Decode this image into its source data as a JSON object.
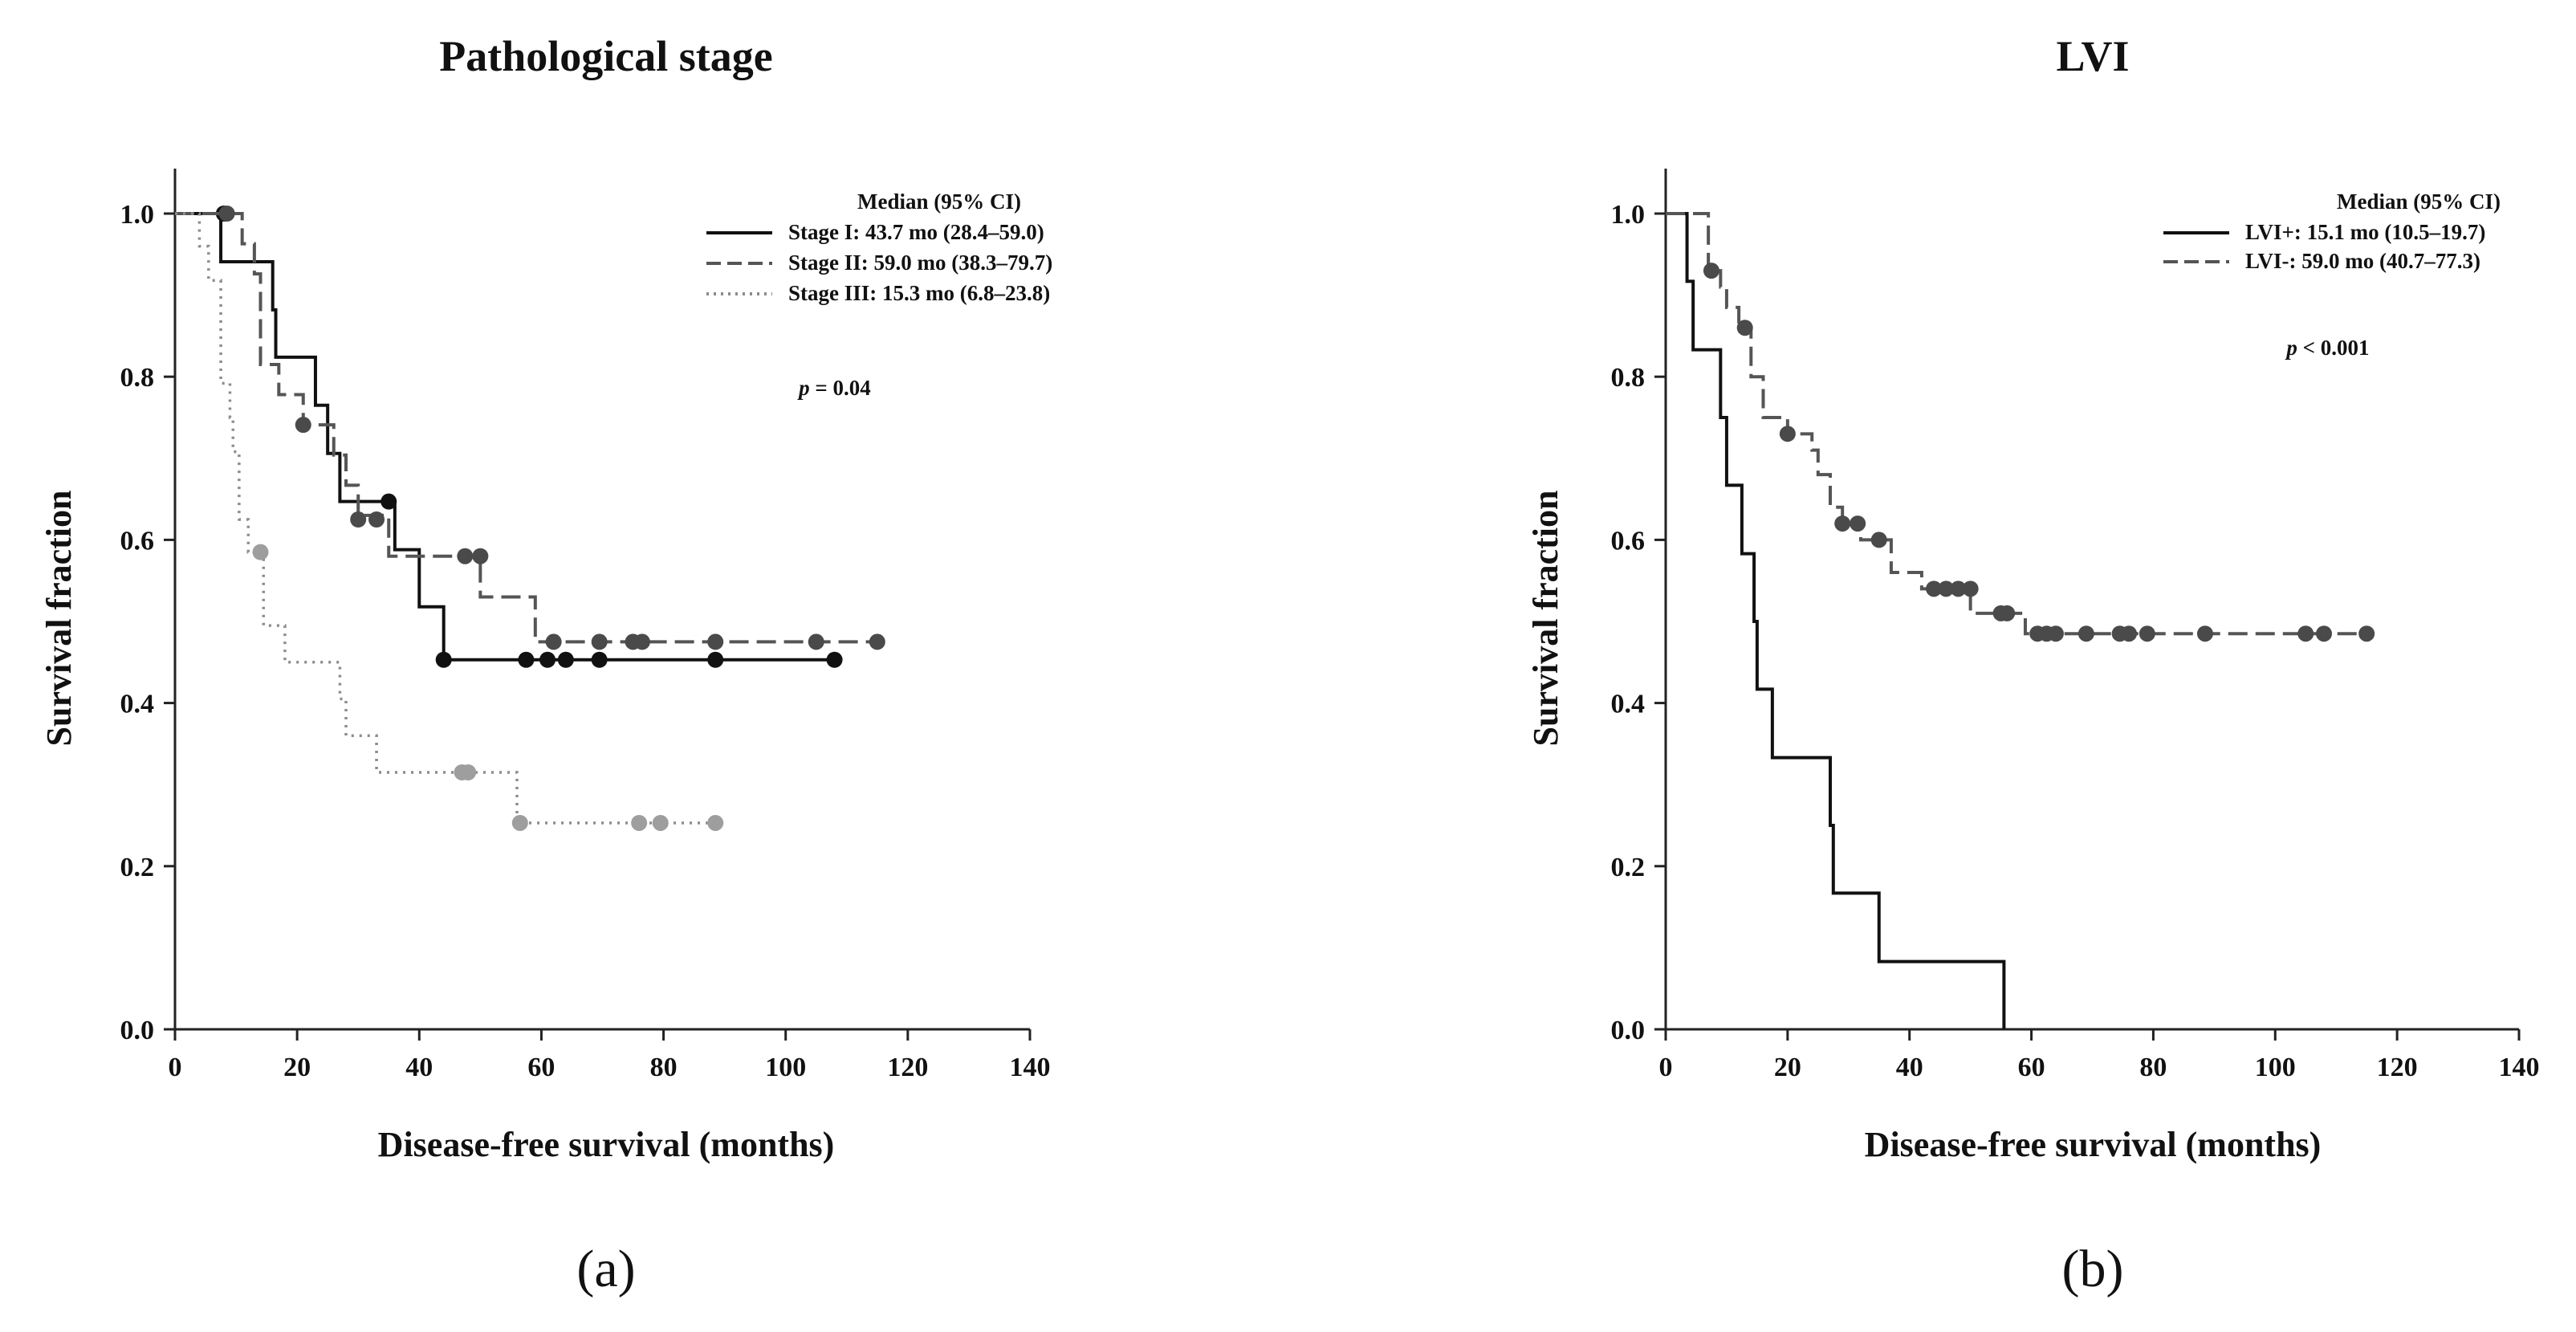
{
  "chart_data": [
    {
      "type": "line",
      "panel_label": "(a)",
      "title": "Pathological stage",
      "xlabel": "Disease-free survival (months)",
      "ylabel": "Survival fraction",
      "xlim": [
        0,
        140
      ],
      "ylim": [
        0,
        1.0
      ],
      "xticks": [
        "0",
        "20",
        "40",
        "60",
        "80",
        "100",
        "120",
        "140"
      ],
      "yticks": [
        "0.0",
        "0.2",
        "0.4",
        "0.6",
        "0.8",
        "1.0"
      ],
      "legend_title": "Median (95% CI)",
      "p_value": {
        "prefix": "p",
        "text": " = 0.04"
      },
      "series": [
        {
          "name": "Stage I: 43.7 mo (28.4–59.0)",
          "style": "solid",
          "color": "#111111",
          "marker_color": "#111111",
          "steps": [
            [
              0,
              1.0
            ],
            [
              7.5,
              0.941
            ],
            [
              16,
              0.882
            ],
            [
              16.5,
              0.824
            ],
            [
              23,
              0.765
            ],
            [
              25,
              0.706
            ],
            [
              27,
              0.647
            ],
            [
              36,
              0.588
            ],
            [
              40,
              0.518
            ],
            [
              44,
              0.453
            ],
            [
              108,
              0.453
            ]
          ],
          "censored": [
            [
              8,
              1.0
            ],
            [
              35,
              0.647
            ],
            [
              44,
              0.453
            ],
            [
              57.5,
              0.453
            ],
            [
              61,
              0.453
            ],
            [
              64,
              0.453
            ],
            [
              69.5,
              0.453
            ],
            [
              88.5,
              0.453
            ],
            [
              108,
              0.453
            ]
          ]
        },
        {
          "name": "Stage II: 59.0 mo (38.3–79.7)",
          "style": "dashed",
          "color": "#555555",
          "marker_color": "#4a4a4a",
          "steps": [
            [
              0,
              1.0
            ],
            [
              11,
              0.963
            ],
            [
              13,
              0.926
            ],
            [
              14,
              0.815
            ],
            [
              17,
              0.778
            ],
            [
              21,
              0.741
            ],
            [
              26,
              0.704
            ],
            [
              28,
              0.667
            ],
            [
              30,
              0.63
            ],
            [
              35,
              0.58
            ],
            [
              50,
              0.53
            ],
            [
              59,
              0.475
            ],
            [
              115,
              0.475
            ]
          ],
          "censored": [
            [
              8.5,
              1.0
            ],
            [
              21,
              0.741
            ],
            [
              30,
              0.625
            ],
            [
              33,
              0.625
            ],
            [
              47.5,
              0.58
            ],
            [
              50,
              0.58
            ],
            [
              62,
              0.475
            ],
            [
              69.5,
              0.475
            ],
            [
              75,
              0.475
            ],
            [
              76.5,
              0.475
            ],
            [
              88.5,
              0.475
            ],
            [
              105,
              0.475
            ],
            [
              115,
              0.475
            ]
          ]
        },
        {
          "name": "Stage III: 15.3 mo (6.8–23.8)",
          "style": "dotted",
          "color": "#8c8c8c",
          "marker_color": "#9e9e9e",
          "steps": [
            [
              0,
              1.0
            ],
            [
              4,
              0.96
            ],
            [
              5.5,
              0.918
            ],
            [
              7.5,
              0.792
            ],
            [
              9,
              0.75
            ],
            [
              9.5,
              0.708
            ],
            [
              10.5,
              0.625
            ],
            [
              12,
              0.585
            ],
            [
              14.5,
              0.495
            ],
            [
              17,
              0.495
            ],
            [
              18,
              0.45
            ],
            [
              27,
              0.405
            ],
            [
              28,
              0.36
            ],
            [
              33,
              0.315
            ],
            [
              56,
              0.253
            ],
            [
              88.5,
              0.253
            ]
          ],
          "censored": [
            [
              14,
              0.585
            ],
            [
              47,
              0.315
            ],
            [
              48,
              0.315
            ],
            [
              56.5,
              0.253
            ],
            [
              76,
              0.253
            ],
            [
              79.5,
              0.253
            ],
            [
              88.5,
              0.253
            ]
          ]
        }
      ]
    },
    {
      "type": "line",
      "panel_label": "(b)",
      "title": "LVI",
      "xlabel": "Disease-free survival (months)",
      "ylabel": "Survival fraction",
      "xlim": [
        0,
        140
      ],
      "ylim": [
        0,
        1.0
      ],
      "xticks": [
        "0",
        "20",
        "40",
        "60",
        "80",
        "100",
        "120",
        "140"
      ],
      "yticks": [
        "0.0",
        "0.2",
        "0.4",
        "0.6",
        "0.8",
        "1.0"
      ],
      "legend_title": "Median (95% CI)",
      "p_value": {
        "prefix": "p",
        "text": " < 0.001"
      },
      "series": [
        {
          "name": "LVI+: 15.1 mo (10.5–19.7)",
          "style": "solid",
          "color": "#111111",
          "marker_color": "#111111",
          "steps": [
            [
              0,
              1.0
            ],
            [
              3.5,
              0.917
            ],
            [
              4.5,
              0.833
            ],
            [
              9,
              0.75
            ],
            [
              10,
              0.667
            ],
            [
              12.5,
              0.583
            ],
            [
              14.5,
              0.5
            ],
            [
              15,
              0.417
            ],
            [
              17.5,
              0.333
            ],
            [
              27,
              0.25
            ],
            [
              27.5,
              0.167
            ],
            [
              35,
              0.083
            ],
            [
              55.5,
              0.0
            ]
          ],
          "censored": []
        },
        {
          "name": "LVI-: 59.0 mo (40.7–77.3)",
          "style": "dashed",
          "color": "#555555",
          "marker_color": "#4a4a4a",
          "steps": [
            [
              0,
              1.0
            ],
            [
              7,
              0.93
            ],
            [
              9,
              0.91
            ],
            [
              10,
              0.885
            ],
            [
              12,
              0.86
            ],
            [
              14,
              0.8
            ],
            [
              16,
              0.75
            ],
            [
              20,
              0.73
            ],
            [
              24,
              0.71
            ],
            [
              25,
              0.68
            ],
            [
              27,
              0.64
            ],
            [
              29,
              0.62
            ],
            [
              32,
              0.6
            ],
            [
              37,
              0.56
            ],
            [
              42,
              0.54
            ],
            [
              50,
              0.51
            ],
            [
              59,
              0.485
            ],
            [
              115,
              0.485
            ]
          ],
          "censored": [
            [
              7.5,
              0.93
            ],
            [
              13,
              0.86
            ],
            [
              20,
              0.73
            ],
            [
              29,
              0.62
            ],
            [
              31.5,
              0.62
            ],
            [
              35,
              0.6
            ],
            [
              44,
              0.54
            ],
            [
              46,
              0.54
            ],
            [
              48,
              0.54
            ],
            [
              50,
              0.54
            ],
            [
              55,
              0.51
            ],
            [
              56,
              0.51
            ],
            [
              61,
              0.485
            ],
            [
              62.5,
              0.485
            ],
            [
              64,
              0.485
            ],
            [
              69,
              0.485
            ],
            [
              74.5,
              0.485
            ],
            [
              76,
              0.485
            ],
            [
              79,
              0.485
            ],
            [
              88.5,
              0.485
            ],
            [
              105,
              0.485
            ],
            [
              108,
              0.485
            ],
            [
              115,
              0.485
            ]
          ]
        }
      ]
    }
  ]
}
